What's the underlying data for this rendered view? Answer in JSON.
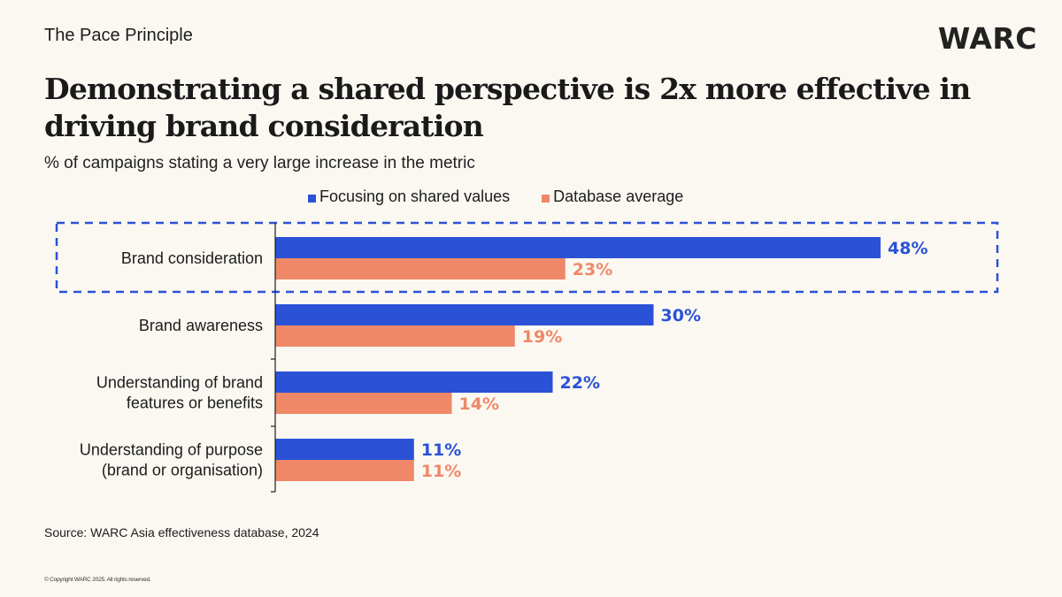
{
  "header": {
    "kicker": "The Pace Principle",
    "logo": "WARC",
    "title": "Demonstrating a shared perspective is 2x more effective in driving brand consideration",
    "subtitle": "% of campaigns stating a very large increase in the metric"
  },
  "colors": {
    "series_primary": "#2b52d6",
    "series_secondary": "#ef8868",
    "highlight_box": "#2b52d6",
    "axis": "#1c1c1c",
    "label_text": "#1c1c1c",
    "background": "#fbf8f2"
  },
  "chart_data": {
    "type": "bar",
    "orientation": "horizontal",
    "title": "Demonstrating a shared perspective is 2x more effective in driving brand consideration",
    "subtitle": "% of campaigns stating a very large increase in the metric",
    "xlabel": "",
    "ylabel": "",
    "value_suffix": "%",
    "xlim": [
      0,
      48
    ],
    "grid": false,
    "legend_position": "top",
    "categories": [
      [
        "Brand consideration"
      ],
      [
        "Brand awareness"
      ],
      [
        "Understanding of brand",
        "features or benefits"
      ],
      [
        "Understanding of purpose",
        "(brand or organisation)"
      ]
    ],
    "series": [
      {
        "name": "Focusing on shared values",
        "color": "#2b52d6",
        "values": [
          48,
          30,
          22,
          11
        ]
      },
      {
        "name": "Database average",
        "color": "#ef8868",
        "values": [
          23,
          19,
          14,
          11
        ]
      }
    ],
    "highlighted_category_index": 0,
    "annotation": "Dashed box highlights Brand consideration"
  },
  "footer": {
    "source": "Source: WARC Asia effectiveness database, 2024",
    "copyright": "© Copyright WARC 2025. All rights reserved."
  }
}
